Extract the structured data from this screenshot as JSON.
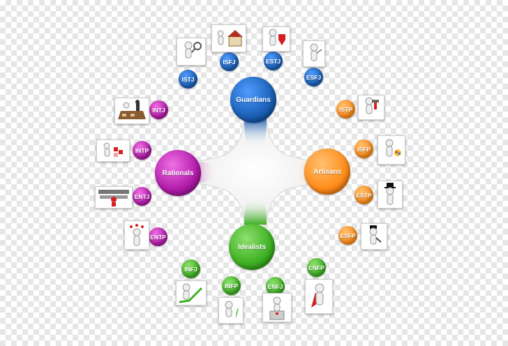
{
  "groups": {
    "guardians": {
      "label": "Guardians",
      "color": "#1a5fb4"
    },
    "artisans": {
      "label": "Artisans",
      "color": "#ff8c1a"
    },
    "idealists": {
      "label": "Idealists",
      "color": "#3cb021"
    },
    "rationals": {
      "label": "Rationals",
      "color": "#b01aa8"
    }
  },
  "types": {
    "istj": "ISTJ",
    "isfj": "ISFJ",
    "estj": "ESTJ",
    "esfj": "ESFJ",
    "istp": "ISTP",
    "isfp": "ISFP",
    "estp": "ESTP",
    "esfp": "ESFP",
    "infj": "INFJ",
    "infp": "INFP",
    "enfj": "ENFJ",
    "enfp": "ENFP",
    "intj": "INTJ",
    "intp": "INTP",
    "entj": "ENTJ",
    "entp": "ENTP"
  }
}
